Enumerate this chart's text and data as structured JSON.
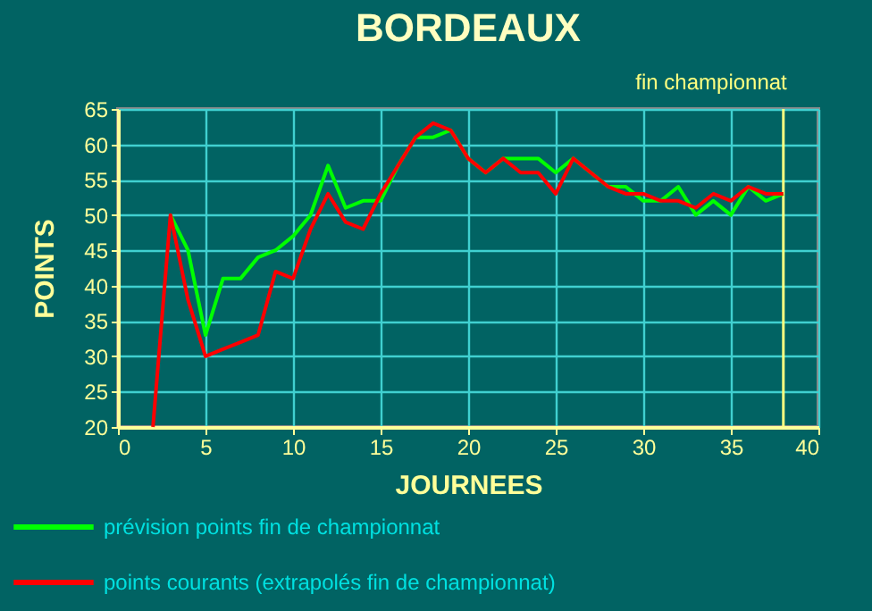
{
  "chart_data": {
    "type": "line",
    "title": "BORDEAUX",
    "xlabel": "JOURNEES",
    "ylabel": "POINTS",
    "xlim": [
      0,
      40
    ],
    "xticks": [
      0,
      5,
      10,
      15,
      20,
      25,
      30,
      35,
      40
    ],
    "ylim": [
      20,
      65
    ],
    "yticks": [
      20,
      25,
      30,
      35,
      40,
      45,
      50,
      55,
      60,
      65
    ],
    "grid": true,
    "line_style": "solid",
    "legend": "bottom left",
    "ref_lines": [
      {
        "axis": "x",
        "value": 38,
        "label": "fin championnat",
        "color": "#ffff80"
      }
    ],
    "series": [
      {
        "name": "prévision points fin de championnat",
        "color": "#00ff00",
        "x": [
          3,
          4,
          5,
          6,
          7,
          8,
          9,
          10,
          11,
          12,
          13,
          14,
          15,
          16,
          17,
          18,
          19,
          20,
          21,
          22,
          23,
          24,
          25,
          26,
          27,
          28,
          29,
          30,
          31,
          32,
          33,
          34,
          35,
          36,
          37,
          38
        ],
        "values": [
          50,
          45,
          33,
          41,
          41,
          44,
          45,
          47,
          50,
          57,
          51,
          52,
          52,
          57,
          61,
          61,
          62,
          58,
          56,
          58,
          58,
          58,
          56,
          58,
          56,
          54,
          54,
          52,
          52,
          54,
          50,
          52,
          50,
          54,
          52,
          53
        ]
      },
      {
        "name": "points courants (extrapolés fin de championnat)",
        "color": "#ff0000",
        "x": [
          2,
          3,
          4,
          5,
          6,
          7,
          8,
          9,
          10,
          11,
          12,
          13,
          14,
          15,
          16,
          17,
          18,
          19,
          20,
          21,
          22,
          23,
          24,
          25,
          26,
          27,
          28,
          29,
          30,
          31,
          32,
          33,
          34,
          35,
          36,
          37,
          38
        ],
        "values": [
          20,
          50,
          38,
          30,
          31,
          32,
          33,
          42,
          41,
          48,
          53,
          49,
          48,
          53,
          57,
          61,
          63,
          62,
          58,
          56,
          58,
          56,
          56,
          53,
          58,
          56,
          54,
          53,
          53,
          52,
          52,
          51,
          53,
          52,
          54,
          53,
          53
        ]
      }
    ]
  }
}
